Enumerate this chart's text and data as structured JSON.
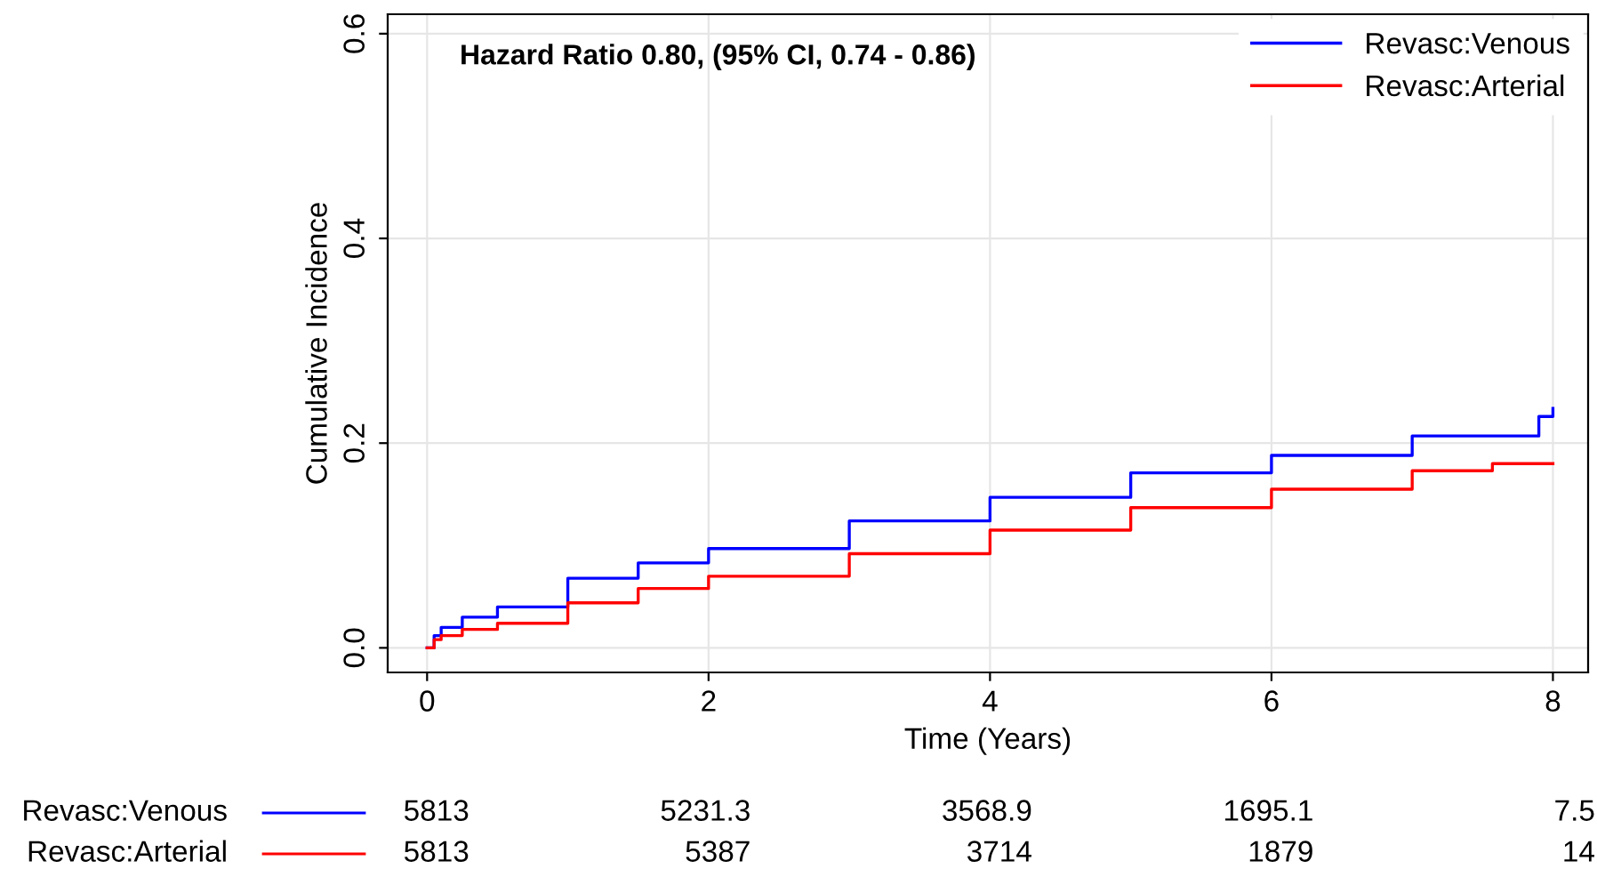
{
  "chart_data": {
    "type": "step",
    "xlabel": "Time (Years)",
    "ylabel": "Cumulative Incidence",
    "xlim": [
      -0.28,
      8.25
    ],
    "ylim": [
      -0.024,
      0.619
    ],
    "xticks": [
      0,
      2,
      4,
      6,
      8
    ],
    "yticks": [
      {
        "value": 0,
        "label": "0.0"
      },
      0.2,
      0.4,
      0.6
    ],
    "grid": true,
    "legend": "top right",
    "line_style": "solid",
    "marker": "none",
    "annotations": [
      "Hazard Ratio 0.80, (95% CI, 0.74 - 0.86)",
      "5813",
      "5231.3",
      "3568.9",
      "1695.1",
      "7.5",
      "5813",
      "5387",
      "3714",
      "1879",
      "14"
    ],
    "series": [
      {
        "name": "Revasc:Venous",
        "color": "#0000ff",
        "x": [
          0,
          0.05,
          0.1,
          0.25,
          0.5,
          1,
          1.5,
          2,
          3,
          4,
          5,
          6,
          7,
          7.9,
          8
        ],
        "values": [
          0,
          0.012,
          0.02,
          0.03,
          0.04,
          0.068,
          0.083,
          0.097,
          0.124,
          0.147,
          0.171,
          0.188,
          0.207,
          0.226,
          0.234
        ]
      },
      {
        "name": "Revasc:Arterial",
        "color": "#ff0000",
        "x": [
          0,
          0.05,
          0.1,
          0.25,
          0.5,
          1,
          1.5,
          2,
          3,
          4,
          5,
          6,
          7,
          7.57,
          8
        ],
        "values": [
          0,
          0.008,
          0.012,
          0.018,
          0.024,
          0.044,
          0.058,
          0.07,
          0.092,
          0.115,
          0.137,
          0.155,
          0.173,
          0.18,
          0.18
        ]
      }
    ]
  }
}
